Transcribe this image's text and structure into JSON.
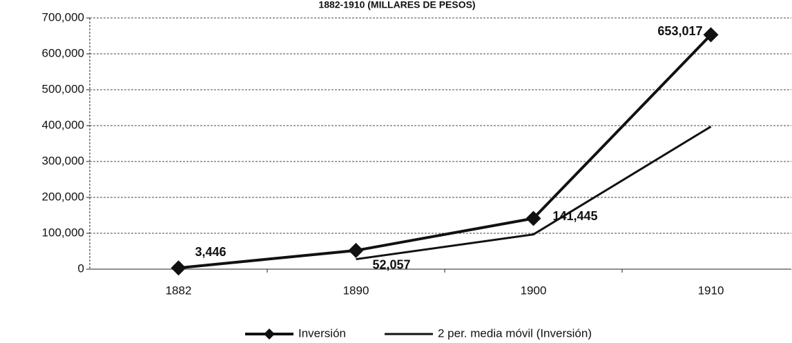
{
  "chart_data": {
    "type": "line",
    "title": "1882-1910 (MILLARES DE PESOS)",
    "categories": [
      "1882",
      "1890",
      "1900",
      "1910"
    ],
    "series": [
      {
        "name": "Inversión",
        "color": "#111111",
        "values": [
          3446,
          52057,
          141445,
          653017
        ],
        "value_labels": [
          "3,446",
          "52,057",
          "141,445",
          "653,017"
        ],
        "marker": "diamond"
      },
      {
        "name": "2 per. media móvil (Inversión)",
        "color": "#111111",
        "values": [
          null,
          27751.5,
          96751,
          397231
        ]
      }
    ],
    "ylim": [
      0,
      700000
    ],
    "yticks": [
      {
        "value": 0,
        "label": "0"
      },
      {
        "value": 100000,
        "label": "100,000"
      },
      {
        "value": 200000,
        "label": "200,000"
      },
      {
        "value": 300000,
        "label": "300,000"
      },
      {
        "value": 400000,
        "label": "400,000"
      },
      {
        "value": 500000,
        "label": "500,000"
      },
      {
        "value": 600000,
        "label": "600,000"
      },
      {
        "value": 700000,
        "label": "700,000"
      }
    ],
    "grid": true
  }
}
